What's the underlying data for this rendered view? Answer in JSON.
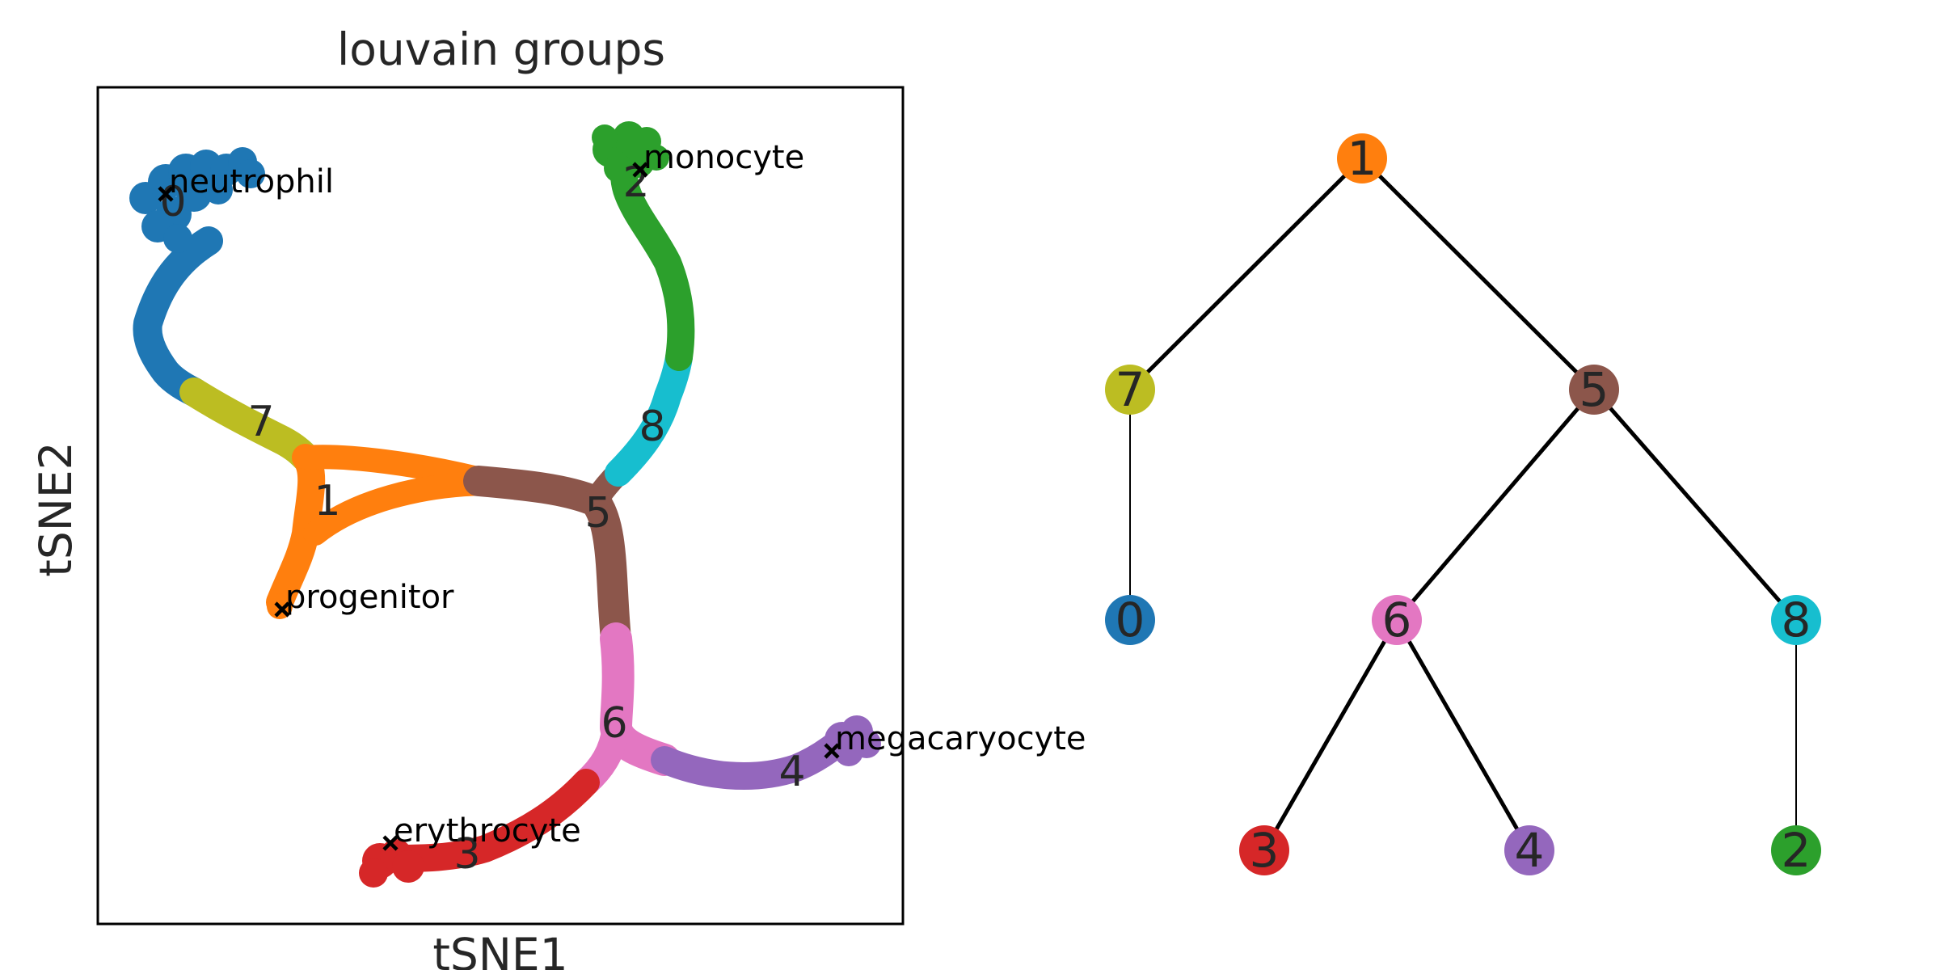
{
  "panel": {
    "title": "louvain groups",
    "xlabel": "tSNE1",
    "ylabel": "tSNE2"
  },
  "colors": {
    "0": "#1f77b4",
    "1": "#ff7f0e",
    "2": "#2ca02c",
    "3": "#d62728",
    "4": "#9467bd",
    "5": "#8c564b",
    "6": "#e377c2",
    "7": "#bcbd22",
    "8": "#17becf"
  },
  "roots": [
    {
      "cluster": "0",
      "label": "neutrophil"
    },
    {
      "cluster": "2",
      "label": "monocyte"
    },
    {
      "cluster": "1",
      "label": "progenitor"
    },
    {
      "cluster": "4",
      "label": "megacaryocyte"
    },
    {
      "cluster": "3",
      "label": "erythrocyte"
    }
  ],
  "clusters": [
    "0",
    "1",
    "2",
    "3",
    "4",
    "5",
    "6",
    "7",
    "8"
  ],
  "tree": {
    "nodes": [
      "1",
      "7",
      "5",
      "0",
      "6",
      "8",
      "3",
      "4",
      "2"
    ],
    "edges": [
      {
        "from": "1",
        "to": "7",
        "thick": true
      },
      {
        "from": "1",
        "to": "5",
        "thick": true
      },
      {
        "from": "7",
        "to": "0",
        "thick": false
      },
      {
        "from": "5",
        "to": "6",
        "thick": true
      },
      {
        "from": "5",
        "to": "8",
        "thick": true
      },
      {
        "from": "6",
        "to": "3",
        "thick": true
      },
      {
        "from": "6",
        "to": "4",
        "thick": true
      },
      {
        "from": "8",
        "to": "2",
        "thick": false
      }
    ]
  }
}
